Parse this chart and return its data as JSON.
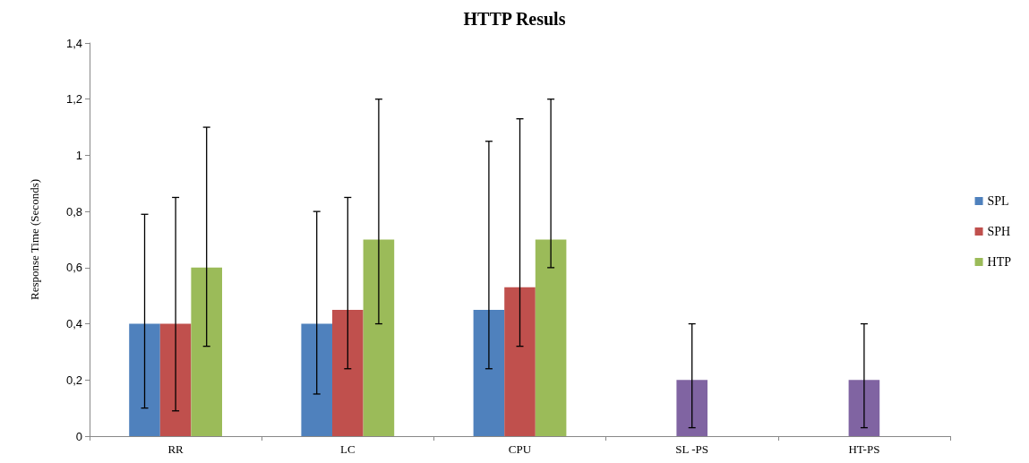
{
  "chart_data": {
    "type": "bar",
    "title": "HTTP Resuls",
    "ylabel": "Response Time (Seconds)",
    "categories": [
      "RR",
      "LC",
      "CPU",
      "SL -PS",
      "HT-PS"
    ],
    "series": [
      {
        "name": "SPL",
        "color": "#4f81bd",
        "values": [
          0.4,
          0.4,
          0.45,
          null,
          null
        ],
        "errors": [
          [
            0.1,
            0.79
          ],
          [
            0.15,
            0.8
          ],
          [
            0.24,
            1.05
          ],
          null,
          null
        ]
      },
      {
        "name": "SPH",
        "color": "#c0504d",
        "values": [
          0.4,
          0.45,
          0.53,
          null,
          null
        ],
        "errors": [
          [
            0.09,
            0.85
          ],
          [
            0.24,
            0.85
          ],
          [
            0.32,
            1.13
          ],
          null,
          null
        ]
      },
      {
        "name": "HTP",
        "color": "#9bbb59",
        "values": [
          0.6,
          0.7,
          0.7,
          null,
          null
        ],
        "errors": [
          [
            0.32,
            1.1
          ],
          [
            0.4,
            1.2
          ],
          [
            0.6,
            1.2
          ],
          null,
          null
        ]
      },
      {
        "color": "#8064a2",
        "values": [
          null,
          null,
          null,
          0.2,
          0.2
        ],
        "errors": [
          null,
          null,
          null,
          [
            0.03,
            0.4
          ],
          [
            0.03,
            0.4
          ]
        ]
      }
    ],
    "ylim": [
      0,
      1.4
    ],
    "yticks": [
      0,
      {
        "value": 0.2,
        "label": "0,2"
      },
      {
        "value": 0.4,
        "label": "0,4"
      },
      {
        "value": 0.6,
        "label": "0,6"
      },
      {
        "value": 0.8,
        "label": "0,8"
      },
      1,
      {
        "value": 1.2,
        "label": "1,2"
      },
      {
        "value": 1.4,
        "label": "1,4"
      }
    ],
    "grid": false,
    "legend": "right"
  }
}
